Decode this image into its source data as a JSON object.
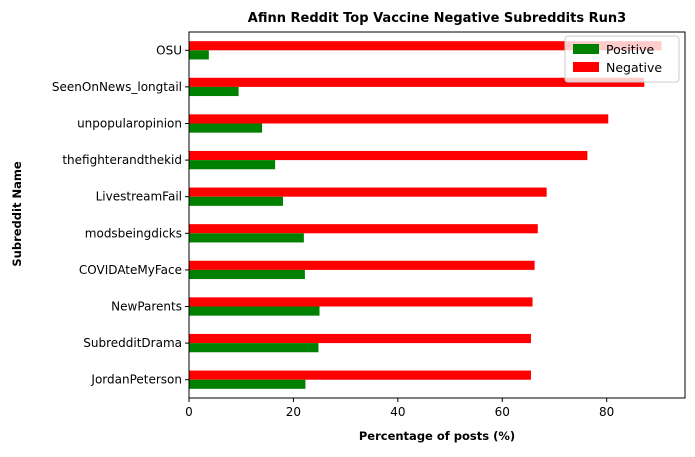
{
  "chart_data": {
    "type": "bar",
    "orientation": "horizontal",
    "title": "Afinn Reddit Top Vaccine Negative Subreddits Run3",
    "xlabel": "Percentage of posts (%)",
    "ylabel": "Subreddit Name",
    "xlim": [
      0,
      95
    ],
    "xticks": [
      0,
      20,
      40,
      60,
      80
    ],
    "grid": false,
    "legend_position": "top-right",
    "categories": [
      "JordanPeterson",
      "SubredditDrama",
      "NewParents",
      "COVIDAteMyFace",
      "modsbeingdicks",
      "LivestreamFail",
      "thefighterandthekid",
      "unpopularopinion",
      "SeenOnNews_longtail",
      "OSU"
    ],
    "series": [
      {
        "name": "Positive",
        "color": "#008000",
        "values": [
          22.3,
          24.8,
          25.0,
          22.2,
          22.0,
          18.0,
          16.5,
          14.0,
          9.5,
          3.8
        ]
      },
      {
        "name": "Negative",
        "color": "#ff0000",
        "values": [
          65.5,
          65.5,
          65.8,
          66.2,
          66.8,
          68.5,
          76.3,
          80.3,
          87.2,
          90.5
        ]
      }
    ]
  }
}
